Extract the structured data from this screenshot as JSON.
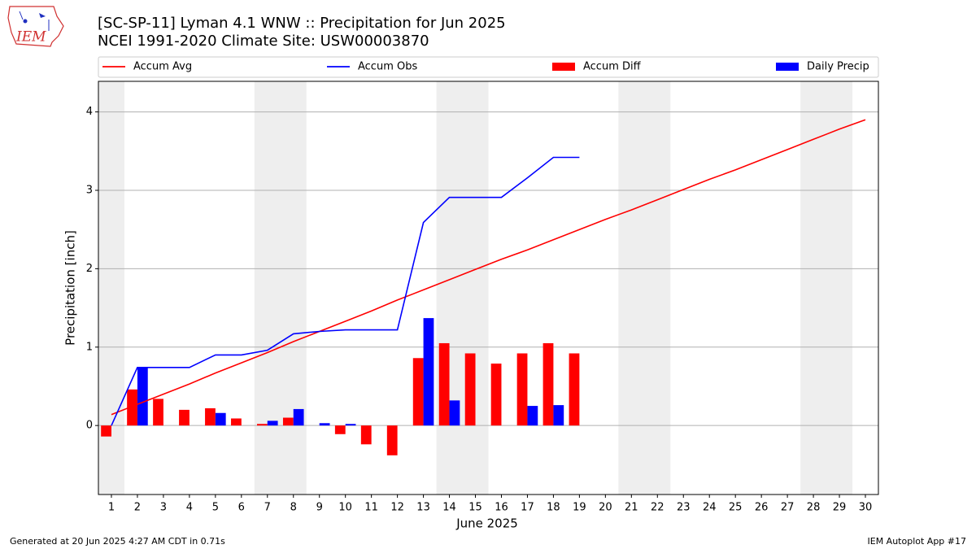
{
  "logo_text": "IEM",
  "footer": {
    "left": "Generated at 20 Jun 2025 4:27 AM CDT in 0.71s",
    "right": "IEM Autoplot App #17"
  },
  "chart_data": {
    "type": "bar",
    "title": "[SC-SP-11] Lyman 4.1 WNW :: Precipitation for Jun 2025",
    "subtitle": "NCEI 1991-2020 Climate Site: USW00003870",
    "x_label": "June 2025",
    "y_label": "Precipitation [inch]",
    "x": [
      1,
      2,
      3,
      4,
      5,
      6,
      7,
      8,
      9,
      10,
      11,
      12,
      13,
      14,
      15,
      16,
      17,
      18,
      19,
      20,
      21,
      22,
      23,
      24,
      25,
      26,
      27,
      28,
      29,
      30
    ],
    "xlim": [
      0.5,
      30.5
    ],
    "xticks": [
      1,
      2,
      3,
      4,
      5,
      6,
      7,
      8,
      9,
      10,
      11,
      12,
      13,
      14,
      15,
      16,
      17,
      18,
      19,
      20,
      21,
      22,
      23,
      24,
      25,
      26,
      27,
      28,
      29,
      30
    ],
    "ylim": [
      -0.88,
      4.39
    ],
    "yticks": [
      0,
      1,
      2,
      3,
      4
    ],
    "grid": true,
    "shaded_ranges": [
      [
        0.5,
        1.5
      ],
      [
        6.5,
        8.5
      ],
      [
        13.5,
        15.5
      ],
      [
        20.5,
        22.5
      ],
      [
        27.5,
        29.5
      ]
    ],
    "shade_color": "#eeeeee",
    "series": [
      {
        "name": "Accum Avg",
        "type": "line",
        "color": "#ff0000",
        "values": [
          0.14,
          0.27,
          0.4,
          0.53,
          0.67,
          0.8,
          0.93,
          1.07,
          1.2,
          1.33,
          1.46,
          1.6,
          1.73,
          1.86,
          1.99,
          2.12,
          2.24,
          2.37,
          2.5,
          2.63,
          2.75,
          2.88,
          3.01,
          3.14,
          3.26,
          3.39,
          3.52,
          3.65,
          3.78,
          3.9
        ]
      },
      {
        "name": "Accum Obs",
        "type": "line",
        "color": "#0000ff",
        "values": [
          0.0,
          0.74,
          0.74,
          0.74,
          0.9,
          0.9,
          0.96,
          1.17,
          1.2,
          1.22,
          1.22,
          1.22,
          2.59,
          2.91,
          2.91,
          2.91,
          3.16,
          3.42,
          3.42,
          null,
          null,
          null,
          null,
          null,
          null,
          null,
          null,
          null,
          null,
          null
        ]
      },
      {
        "name": "Accum Diff",
        "type": "bar",
        "color": "#ff0000",
        "values": [
          -0.14,
          0.46,
          0.34,
          0.2,
          0.22,
          0.09,
          0.02,
          0.1,
          0.0,
          -0.11,
          -0.24,
          -0.38,
          0.86,
          1.05,
          0.92,
          0.79,
          0.92,
          1.05,
          0.92,
          null,
          null,
          null,
          null,
          null,
          null,
          null,
          null,
          null,
          null,
          null
        ]
      },
      {
        "name": "Daily Precip",
        "type": "bar",
        "color": "#0000ff",
        "values": [
          0,
          0.74,
          0,
          0,
          0.16,
          0,
          0.06,
          0.21,
          0.03,
          0.02,
          0,
          0,
          1.37,
          0.32,
          0,
          0,
          0.25,
          0.26,
          0,
          null,
          null,
          null,
          null,
          null,
          null,
          null,
          null,
          null,
          null,
          null
        ]
      }
    ]
  }
}
